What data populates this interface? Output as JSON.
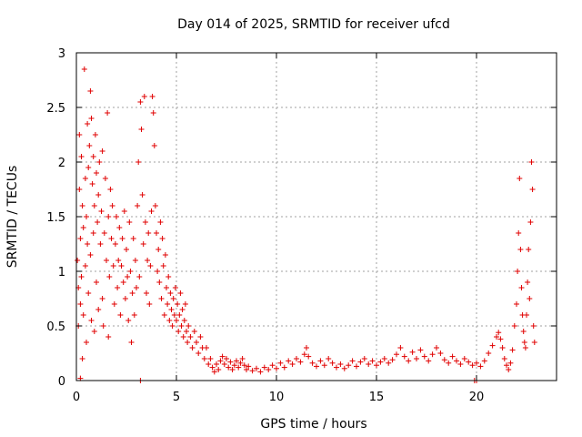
{
  "chart_data": {
    "type": "scatter",
    "title": "Day 014 of 2025, SRMTID for receiver ufcd",
    "xlabel": "GPS time / hours",
    "ylabel": "SRMTID / TECUs",
    "xlim": [
      0,
      24
    ],
    "ylim": [
      0,
      3
    ],
    "xticks": [
      0,
      5,
      10,
      15,
      20
    ],
    "yticks": [
      0,
      0.5,
      1,
      1.5,
      2,
      2.5,
      3
    ],
    "xtick_labels": [
      "0",
      "5",
      "10",
      "15",
      "20"
    ],
    "ytick_labels": [
      "0",
      "0.5",
      "1",
      "1.5",
      "2",
      "2.5",
      "3"
    ],
    "grid": true,
    "marker": "+",
    "color": "#e00000",
    "series": [
      {
        "name": "SRMTID",
        "points": [
          [
            0.05,
            1.1
          ],
          [
            0.1,
            0.85
          ],
          [
            0.1,
            0.5
          ],
          [
            0.15,
            2.25
          ],
          [
            0.15,
            1.75
          ],
          [
            0.2,
            1.3
          ],
          [
            0.2,
            0.7
          ],
          [
            0.25,
            2.05
          ],
          [
            0.25,
            0.95
          ],
          [
            0.3,
            1.6
          ],
          [
            0.3,
            0.2
          ],
          [
            0.35,
            1.4
          ],
          [
            0.35,
            0.6
          ],
          [
            0.4,
            2.85
          ],
          [
            0.45,
            1.85
          ],
          [
            0.45,
            1.05
          ],
          [
            0.5,
            1.5
          ],
          [
            0.5,
            0.35
          ],
          [
            0.55,
            2.35
          ],
          [
            0.55,
            1.25
          ],
          [
            0.6,
            1.95
          ],
          [
            0.6,
            0.8
          ],
          [
            0.65,
            2.15
          ],
          [
            0.7,
            2.65
          ],
          [
            0.7,
            1.15
          ],
          [
            0.75,
            2.4
          ],
          [
            0.75,
            0.55
          ],
          [
            0.8,
            1.8
          ],
          [
            0.85,
            2.05
          ],
          [
            0.85,
            1.35
          ],
          [
            0.9,
            1.6
          ],
          [
            0.9,
            0.45
          ],
          [
            0.95,
            2.25
          ],
          [
            1.0,
            1.9
          ],
          [
            1.0,
            0.9
          ],
          [
            1.05,
            1.45
          ],
          [
            1.1,
            1.7
          ],
          [
            1.1,
            0.65
          ],
          [
            1.15,
            2.0
          ],
          [
            1.2,
            1.25
          ],
          [
            1.25,
            1.55
          ],
          [
            1.3,
            2.1
          ],
          [
            1.3,
            0.75
          ],
          [
            1.35,
            0.5
          ],
          [
            1.4,
            1.35
          ],
          [
            1.45,
            1.85
          ],
          [
            1.5,
            1.1
          ],
          [
            1.55,
            2.45
          ],
          [
            1.6,
            1.5
          ],
          [
            1.6,
            0.4
          ],
          [
            1.65,
            0.95
          ],
          [
            1.7,
            1.75
          ],
          [
            1.75,
            1.3
          ],
          [
            1.8,
            1.6
          ],
          [
            1.85,
            1.05
          ],
          [
            1.9,
            0.7
          ],
          [
            1.95,
            1.25
          ],
          [
            2.0,
            1.5
          ],
          [
            2.05,
            0.85
          ],
          [
            2.1,
            1.1
          ],
          [
            2.15,
            1.4
          ],
          [
            2.2,
            0.6
          ],
          [
            2.25,
            1.05
          ],
          [
            2.3,
            1.3
          ],
          [
            2.35,
            0.9
          ],
          [
            2.4,
            1.55
          ],
          [
            2.45,
            0.75
          ],
          [
            2.5,
            1.2
          ],
          [
            2.55,
            0.95
          ],
          [
            2.6,
            0.55
          ],
          [
            2.65,
            1.45
          ],
          [
            2.7,
            1.0
          ],
          [
            2.75,
            0.35
          ],
          [
            2.8,
            0.8
          ],
          [
            2.85,
            1.3
          ],
          [
            2.9,
            0.6
          ],
          [
            2.95,
            1.1
          ],
          [
            3.0,
            0.85
          ],
          [
            3.05,
            1.6
          ],
          [
            3.1,
            2.0
          ],
          [
            3.15,
            0.95
          ],
          [
            3.2,
            2.55
          ],
          [
            3.25,
            2.3
          ],
          [
            3.3,
            1.7
          ],
          [
            3.35,
            1.25
          ],
          [
            3.4,
            2.6
          ],
          [
            3.45,
            1.45
          ],
          [
            3.5,
            0.8
          ],
          [
            3.55,
            1.1
          ],
          [
            3.6,
            1.35
          ],
          [
            3.65,
            0.7
          ],
          [
            3.7,
            1.05
          ],
          [
            3.75,
            1.55
          ],
          [
            3.8,
            2.6
          ],
          [
            3.85,
            2.45
          ],
          [
            3.9,
            2.15
          ],
          [
            3.95,
            1.6
          ],
          [
            4.0,
            1.35
          ],
          [
            4.05,
            1.0
          ],
          [
            4.1,
            1.2
          ],
          [
            4.15,
            0.9
          ],
          [
            4.2,
            1.45
          ],
          [
            4.25,
            0.75
          ],
          [
            4.3,
            1.3
          ],
          [
            4.35,
            1.05
          ],
          [
            4.4,
            0.6
          ],
          [
            4.45,
            1.15
          ],
          [
            4.5,
            0.85
          ],
          [
            4.55,
            0.7
          ],
          [
            4.6,
            0.95
          ],
          [
            4.65,
            0.55
          ],
          [
            4.7,
            0.8
          ],
          [
            4.75,
            0.65
          ],
          [
            4.8,
            0.5
          ],
          [
            4.85,
            0.75
          ],
          [
            4.9,
            0.6
          ],
          [
            4.95,
            0.85
          ],
          [
            5.0,
            0.55
          ],
          [
            5.05,
            0.7
          ],
          [
            5.1,
            0.45
          ],
          [
            5.15,
            0.6
          ],
          [
            5.2,
            0.8
          ],
          [
            5.25,
            0.5
          ],
          [
            5.3,
            0.65
          ],
          [
            5.35,
            0.4
          ],
          [
            5.4,
            0.55
          ],
          [
            5.45,
            0.7
          ],
          [
            5.5,
            0.45
          ],
          [
            5.55,
            0.35
          ],
          [
            5.6,
            0.5
          ],
          [
            5.7,
            0.4
          ],
          [
            5.8,
            0.3
          ],
          [
            5.9,
            0.45
          ],
          [
            6.0,
            0.35
          ],
          [
            6.1,
            0.25
          ],
          [
            6.2,
            0.4
          ],
          [
            6.3,
            0.3
          ],
          [
            6.4,
            0.2
          ],
          [
            6.5,
            0.3
          ],
          [
            6.6,
            0.15
          ],
          [
            6.7,
            0.2
          ],
          [
            6.8,
            0.12
          ],
          [
            6.9,
            0.08
          ],
          [
            7.0,
            0.15
          ],
          [
            7.1,
            0.1
          ],
          [
            7.2,
            0.18
          ],
          [
            7.3,
            0.22
          ],
          [
            7.4,
            0.15
          ],
          [
            7.5,
            0.2
          ],
          [
            7.6,
            0.12
          ],
          [
            7.7,
            0.17
          ],
          [
            7.8,
            0.1
          ],
          [
            7.9,
            0.14
          ],
          [
            8.0,
            0.18
          ],
          [
            8.1,
            0.12
          ],
          [
            8.2,
            0.16
          ],
          [
            8.3,
            0.2
          ],
          [
            8.4,
            0.14
          ],
          [
            8.5,
            0.1
          ],
          [
            8.6,
            0.13
          ],
          [
            8.8,
            0.09
          ],
          [
            9.0,
            0.11
          ],
          [
            9.2,
            0.08
          ],
          [
            9.4,
            0.12
          ],
          [
            9.6,
            0.1
          ],
          [
            9.8,
            0.14
          ],
          [
            10.0,
            0.11
          ],
          [
            10.2,
            0.16
          ],
          [
            10.4,
            0.12
          ],
          [
            10.6,
            0.18
          ],
          [
            10.8,
            0.15
          ],
          [
            11.0,
            0.2
          ],
          [
            11.2,
            0.17
          ],
          [
            11.4,
            0.24
          ],
          [
            11.5,
            0.3
          ],
          [
            11.6,
            0.22
          ],
          [
            11.8,
            0.16
          ],
          [
            12.0,
            0.13
          ],
          [
            12.2,
            0.18
          ],
          [
            12.4,
            0.14
          ],
          [
            12.6,
            0.2
          ],
          [
            12.8,
            0.16
          ],
          [
            13.0,
            0.12
          ],
          [
            13.2,
            0.15
          ],
          [
            13.4,
            0.11
          ],
          [
            13.6,
            0.14
          ],
          [
            13.8,
            0.18
          ],
          [
            14.0,
            0.13
          ],
          [
            14.2,
            0.17
          ],
          [
            14.4,
            0.2
          ],
          [
            14.6,
            0.15
          ],
          [
            14.8,
            0.18
          ],
          [
            15.0,
            0.14
          ],
          [
            15.2,
            0.17
          ],
          [
            15.4,
            0.2
          ],
          [
            15.6,
            0.16
          ],
          [
            15.8,
            0.19
          ],
          [
            16.0,
            0.24
          ],
          [
            16.2,
            0.3
          ],
          [
            16.4,
            0.22
          ],
          [
            16.6,
            0.18
          ],
          [
            16.8,
            0.26
          ],
          [
            17.0,
            0.2
          ],
          [
            17.2,
            0.28
          ],
          [
            17.4,
            0.22
          ],
          [
            17.6,
            0.18
          ],
          [
            17.8,
            0.24
          ],
          [
            18.0,
            0.3
          ],
          [
            18.2,
            0.25
          ],
          [
            18.4,
            0.19
          ],
          [
            18.6,
            0.16
          ],
          [
            18.8,
            0.22
          ],
          [
            19.0,
            0.18
          ],
          [
            19.2,
            0.15
          ],
          [
            19.4,
            0.2
          ],
          [
            19.6,
            0.17
          ],
          [
            19.8,
            0.14
          ],
          [
            20.0,
            0.16
          ],
          [
            20.2,
            0.13
          ],
          [
            20.4,
            0.18
          ],
          [
            20.6,
            0.25
          ],
          [
            20.8,
            0.32
          ],
          [
            21.0,
            0.4
          ],
          [
            21.1,
            0.44
          ],
          [
            21.2,
            0.38
          ],
          [
            21.3,
            0.3
          ],
          [
            21.4,
            0.2
          ],
          [
            21.5,
            0.14
          ],
          [
            21.6,
            0.1
          ],
          [
            21.7,
            0.16
          ],
          [
            21.8,
            0.28
          ],
          [
            21.9,
            0.5
          ],
          [
            22.0,
            0.7
          ],
          [
            22.05,
            1.0
          ],
          [
            22.1,
            1.35
          ],
          [
            22.15,
            1.85
          ],
          [
            22.2,
            1.2
          ],
          [
            22.25,
            0.85
          ],
          [
            22.3,
            0.6
          ],
          [
            22.35,
            0.45
          ],
          [
            22.4,
            0.35
          ],
          [
            22.45,
            0.3
          ],
          [
            22.5,
            0.6
          ],
          [
            22.55,
            0.9
          ],
          [
            22.6,
            1.2
          ],
          [
            22.65,
            0.75
          ],
          [
            22.7,
            1.45
          ],
          [
            22.75,
            2.0
          ],
          [
            22.8,
            1.75
          ],
          [
            22.85,
            0.5
          ],
          [
            22.9,
            0.35
          ],
          [
            0.2,
            0.02
          ],
          [
            3.2,
            0.0
          ],
          [
            19.9,
            0.0
          ],
          [
            20.0,
            0.0
          ]
        ]
      }
    ]
  }
}
